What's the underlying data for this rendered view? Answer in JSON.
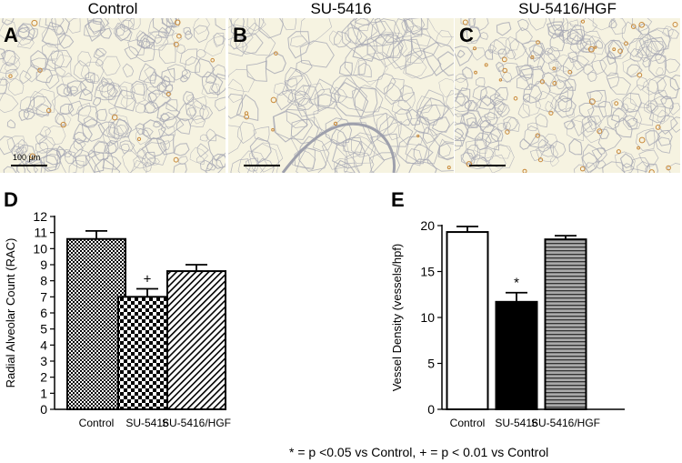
{
  "micrographs": [
    {
      "title": "Control",
      "letter": "A",
      "scale_label": "100 µm",
      "stain_color": "#c98a3a"
    },
    {
      "title": "SU-5416",
      "letter": "B",
      "scale_label": "",
      "stain_color": "#c98a3a"
    },
    {
      "title": "SU-5416/HGF",
      "letter": "C",
      "scale_label": "",
      "stain_color": "#c98a3a"
    }
  ],
  "footnote": "* = p <0.05 vs Control, + = p < 0.01 vs Control",
  "chart_data": [
    {
      "panel": "D",
      "type": "bar",
      "categories": [
        "Control",
        "SU-5416",
        "SU-5416/HGF"
      ],
      "values": [
        10.6,
        7.0,
        8.6
      ],
      "errors": [
        0.5,
        0.5,
        0.4
      ],
      "annotations": [
        "",
        "+",
        ""
      ],
      "patterns": [
        "fine-checker",
        "coarse-checker",
        "diagonal-stripes"
      ],
      "ylabel": "Radial Alveolar Count (RAC)",
      "xlabel": "",
      "ylim": [
        0,
        12
      ],
      "yticks": [
        0,
        1,
        2,
        3,
        4,
        5,
        6,
        7,
        8,
        9,
        10,
        11,
        12
      ],
      "grid": false
    },
    {
      "panel": "E",
      "type": "bar",
      "categories": [
        "Control",
        "SU-5416",
        "SU-5416/HGF"
      ],
      "values": [
        19.3,
        11.7,
        18.5
      ],
      "errors": [
        0.6,
        1.0,
        0.4
      ],
      "annotations": [
        "",
        "*",
        ""
      ],
      "patterns": [
        "white",
        "black",
        "horizontal-stripes"
      ],
      "ylabel": "Vessel Density (vessels/hpf)",
      "xlabel": "",
      "ylim": [
        0,
        20
      ],
      "yticks": [
        0,
        5,
        10,
        15,
        20
      ],
      "grid": false
    }
  ]
}
